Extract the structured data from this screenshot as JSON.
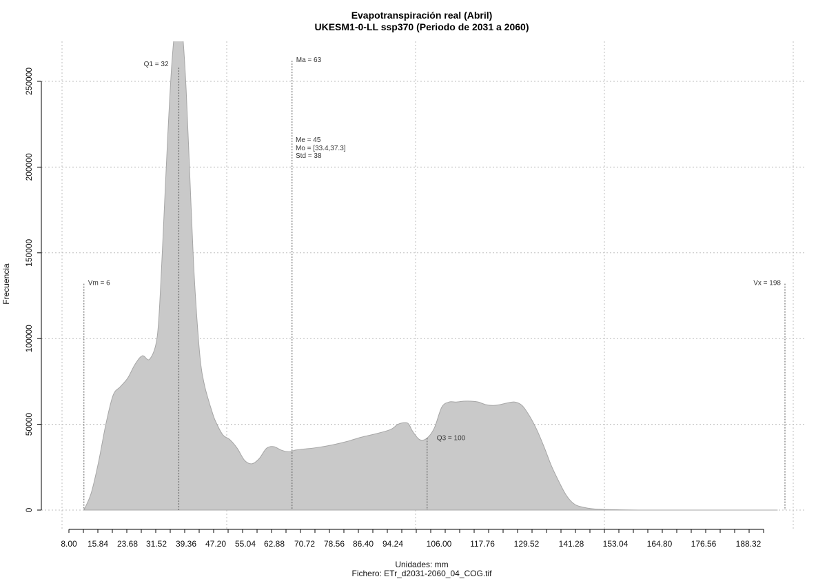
{
  "chart_data": {
    "type": "area",
    "title": "Evapotranspiración real (Abril)",
    "subtitle": "UKESM1-0-LL ssp370 (Periodo de 2031 a 2060)",
    "xlabel": "Unidades: mm",
    "ylabel": "Frecuencia",
    "footer": "Fichero: ETr_d2031-2060_04_COG.tif",
    "xlim": [
      0,
      198
    ],
    "ylim": [
      0,
      270000
    ],
    "x_ticks": [
      "8.00",
      "15.84",
      "23.68",
      "31.52",
      "39.36",
      "47.20",
      "55.04",
      "62.88",
      "70.72",
      "78.56",
      "86.40",
      "94.24",
      "106.00",
      "117.76",
      "129.52",
      "141.28",
      "153.04",
      "164.80",
      "176.56",
      "188.32"
    ],
    "y_ticks": [
      0,
      50000,
      100000,
      150000,
      200000,
      250000
    ],
    "grid": true,
    "fill_color": "#c9c9c9",
    "line_color": "#a6a6a6",
    "series": [
      {
        "x": [
          6,
          8,
          10,
          12,
          14,
          16,
          18,
          20,
          22,
          24,
          26,
          27,
          28,
          29,
          30,
          31,
          32,
          33,
          34,
          35,
          36,
          37,
          38,
          39,
          40,
          41,
          42,
          44,
          46,
          48,
          50,
          52,
          54,
          56,
          58,
          60,
          62,
          64,
          66,
          70,
          74,
          78,
          82,
          86,
          90,
          92,
          94,
          95,
          96,
          98,
          100,
          102,
          104,
          106,
          108,
          110,
          112,
          114,
          116,
          118,
          120,
          122,
          124,
          126,
          128,
          130,
          132,
          134,
          136,
          138,
          140,
          142,
          146,
          152,
          160,
          180,
          196
        ],
        "y": [
          0,
          10000,
          28000,
          50000,
          67000,
          72000,
          77000,
          85000,
          90000,
          88000,
          100000,
          130000,
          175000,
          220000,
          258000,
          282000,
          290000,
          278000,
          245000,
          195000,
          145000,
          110000,
          85000,
          73000,
          65000,
          58000,
          52000,
          44000,
          41000,
          36000,
          29000,
          27000,
          30000,
          36000,
          37000,
          35000,
          34000,
          35000,
          35500,
          36500,
          38000,
          40000,
          42500,
          44500,
          47000,
          50000,
          51000,
          50000,
          46000,
          41000,
          42000,
          48000,
          60000,
          63000,
          63000,
          63500,
          63500,
          63000,
          61500,
          61000,
          61500,
          62500,
          63000,
          61000,
          55000,
          47000,
          37000,
          26000,
          17000,
          9000,
          4000,
          2000,
          600,
          200,
          0,
          0,
          0
        ]
      }
    ],
    "markers": [
      {
        "label": "Vm = 6",
        "x": 6,
        "height": 132000
      },
      {
        "label": "Q1 = 32",
        "x": 32,
        "height": 258000
      },
      {
        "label": "Ma = 63",
        "x": 63,
        "height": 262000
      },
      {
        "label": "Q3 = 100",
        "x": 100,
        "height": 42000
      },
      {
        "label": "Vx = 198",
        "x": 198,
        "height": 132000
      }
    ],
    "stats": [
      "Me = 45",
      "Mo = [33.4,37.3]",
      "Std = 38"
    ]
  }
}
